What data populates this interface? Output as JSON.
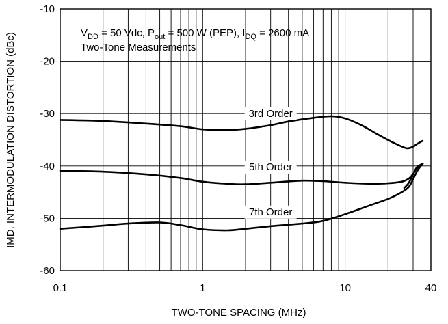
{
  "chart_data": {
    "type": "line",
    "title": "",
    "xlabel": "TWO-TONE SPACING (MHz)",
    "ylabel": "IMD, INTERMODULATION DISTORTION (dBc)",
    "x_scale": "log",
    "xlim": [
      0.1,
      40
    ],
    "ylim": [
      -60,
      -10
    ],
    "x_ticks": [
      0.1,
      1,
      10,
      40
    ],
    "x_tick_labels": [
      "0.1",
      "1",
      "10",
      "40"
    ],
    "y_ticks": [
      -10,
      -20,
      -30,
      -40,
      -50,
      -60
    ],
    "y_tick_labels": [
      "-10",
      "-20",
      "-30",
      "-40",
      "-50",
      "-60"
    ],
    "grid": true,
    "annotation": {
      "conditions": [
        {
          "t": "V"
        },
        {
          "t": "DD",
          "sub": true
        },
        {
          "t": " = 50 Vdc, P"
        },
        {
          "t": "out",
          "sub": true
        },
        {
          "t": " = 500 W (PEP), I"
        },
        {
          "t": "DQ",
          "sub": true
        },
        {
          "t": " = 2600 mA"
        }
      ],
      "measurement": "Two-Tone Measurements"
    },
    "series": [
      {
        "name": "3rd Order",
        "x": [
          0.1,
          0.2,
          0.4,
          0.7,
          1,
          1.5,
          2,
          3,
          4,
          6,
          8,
          10,
          13,
          17,
          22,
          27,
          30,
          32,
          35
        ],
        "y": [
          -31.2,
          -31.4,
          -31.9,
          -32.4,
          -33.0,
          -33.1,
          -32.9,
          -32.2,
          -31.5,
          -30.8,
          -30.5,
          -30.9,
          -32.2,
          -34.0,
          -35.6,
          -36.6,
          -36.3,
          -35.8,
          -35.2
        ]
      },
      {
        "name": "5th Order",
        "x": [
          0.1,
          0.2,
          0.4,
          0.7,
          1,
          1.5,
          2,
          3,
          5,
          7,
          10,
          15,
          20,
          25,
          28,
          30,
          32,
          34,
          35,
          32,
          30,
          28,
          26
        ],
        "y": [
          -40.9,
          -41.1,
          -41.6,
          -42.3,
          -43.0,
          -43.4,
          -43.5,
          -43.2,
          -42.8,
          -42.9,
          -43.2,
          -43.4,
          -43.3,
          -43.0,
          -42.4,
          -41.5,
          -40.4,
          -39.8,
          -39.6,
          -40.2,
          -41.6,
          -43.2,
          -44.2
        ]
      },
      {
        "name": "7th Order",
        "x": [
          0.1,
          0.2,
          0.3,
          0.5,
          0.7,
          1,
          1.5,
          2,
          3,
          5,
          7,
          10,
          15,
          20,
          25,
          28,
          30,
          32,
          34,
          35
        ],
        "y": [
          -52.0,
          -51.4,
          -51.0,
          -50.8,
          -51.3,
          -52.1,
          -52.3,
          -52.0,
          -51.5,
          -51.0,
          -50.5,
          -49.2,
          -47.5,
          -46.3,
          -45.0,
          -44.0,
          -42.5,
          -41.0,
          -40.0,
          -39.6
        ]
      }
    ]
  }
}
